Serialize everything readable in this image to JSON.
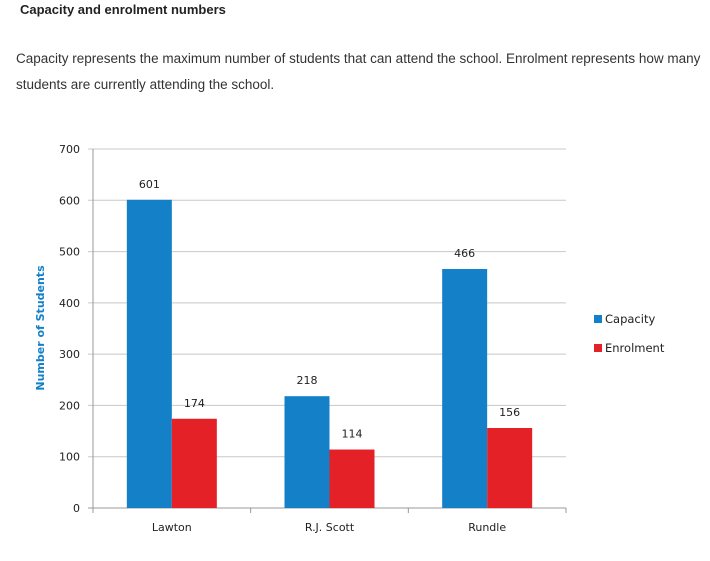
{
  "heading": "Capacity and enrolment numbers",
  "description": "Capacity represents the maximum number of students that can attend the school. Enrolment represents how many students are currently attending the school.",
  "chart_data": {
    "type": "bar",
    "title": "",
    "xlabel": "",
    "ylabel": "Number of Students",
    "ylim": [
      0,
      700
    ],
    "yticks": [
      0,
      100,
      200,
      300,
      400,
      500,
      600,
      700
    ],
    "grid": true,
    "legend_position": "right",
    "categories": [
      "Lawton",
      "R.J. Scott",
      "Rundle"
    ],
    "series": [
      {
        "name": "Capacity",
        "color": "#1380c8",
        "values": [
          601,
          218,
          466
        ]
      },
      {
        "name": "Enrolment",
        "color": "#e32127",
        "values": [
          174,
          114,
          156
        ]
      }
    ]
  }
}
